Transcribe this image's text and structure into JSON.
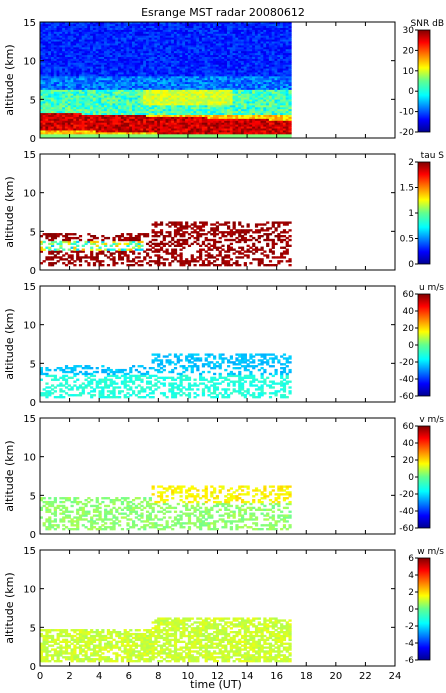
{
  "chart_data": {
    "title": "Esrange MST radar 20080612",
    "type": "heatmap",
    "xlabel": "time (UT)",
    "xlim": [
      0,
      24
    ],
    "x_ticks": [
      0,
      2,
      4,
      6,
      8,
      10,
      12,
      14,
      16,
      18,
      20,
      22,
      24
    ],
    "data_time_range": [
      0,
      17
    ],
    "panels": [
      {
        "id": "snr",
        "ylabel": "altitude (km)",
        "ylim": [
          0,
          15
        ],
        "y_ticks": [
          0,
          5,
          10,
          15
        ],
        "colorbar_label": "SNR dB",
        "colorbar_range": [
          -20,
          30
        ],
        "colorbar_ticks": [
          -20,
          -10,
          0,
          10,
          20,
          30
        ],
        "colormap": "jet",
        "coverage": "full altitude range 0-15 km, 0-17 UT",
        "features": [
          {
            "desc": "background noise",
            "altitude_km": [
              8,
              15
            ],
            "value": -12
          },
          {
            "desc": "elevated layer",
            "altitude_km": [
              3,
              6
            ],
            "value": 10
          },
          {
            "desc": "strong echo layer descending",
            "altitude_km": [
              1,
              3
            ],
            "value": 25
          }
        ]
      },
      {
        "id": "tau",
        "ylabel": "altitude (km)",
        "ylim": [
          0,
          15
        ],
        "y_ticks": [
          0,
          5,
          10,
          15
        ],
        "colorbar_label": "tau S",
        "colorbar_range": [
          0,
          2
        ],
        "colorbar_ticks": [
          0,
          0.5,
          1,
          1.5,
          2
        ],
        "colormap": "jet",
        "coverage": "sparse, 0.5-6.5 km",
        "features": [
          {
            "desc": "dominant",
            "altitude_km": [
              1,
              6
            ],
            "value": 2.0
          },
          {
            "desc": "low band",
            "altitude_km": [
              2.5,
              4
            ],
            "value": 0.9
          }
        ]
      },
      {
        "id": "u",
        "ylabel": "altitude (km)",
        "ylim": [
          0,
          15
        ],
        "y_ticks": [
          0,
          5,
          10,
          15
        ],
        "colorbar_label": "u m/s",
        "colorbar_range": [
          -60,
          60
        ],
        "colorbar_ticks": [
          -60,
          -40,
          -20,
          0,
          20,
          40,
          60
        ],
        "colormap": "jet",
        "coverage": "sparse, 0-6 km",
        "features": [
          {
            "desc": "upper",
            "altitude_km": [
              3.5,
              6
            ],
            "value": -20
          },
          {
            "desc": "lower",
            "altitude_km": [
              0,
              3.5
            ],
            "value": -12
          }
        ]
      },
      {
        "id": "v",
        "ylabel": "altitude (km)",
        "ylim": [
          0,
          15
        ],
        "y_ticks": [
          0,
          5,
          10,
          15
        ],
        "colorbar_label": "v m/s",
        "colorbar_range": [
          -60,
          60
        ],
        "colorbar_ticks": [
          -60,
          -40,
          -20,
          0,
          20,
          40,
          60
        ],
        "colormap": "jet",
        "coverage": "sparse, 0-6.5 km",
        "features": [
          {
            "desc": "upper after 8 UT",
            "altitude_km": [
              4,
              6.5
            ],
            "value": 15
          },
          {
            "desc": "lower",
            "altitude_km": [
              0,
              4
            ],
            "value": 2
          }
        ]
      },
      {
        "id": "w",
        "ylabel": "altitude (km)",
        "ylim": [
          0,
          15
        ],
        "y_ticks": [
          0,
          5,
          10,
          15
        ],
        "colorbar_label": "w m/s",
        "colorbar_range": [
          -6,
          6
        ],
        "colorbar_ticks": [
          -6,
          -4,
          -2,
          0,
          2,
          4,
          6
        ],
        "colormap": "jet",
        "coverage": "0-6 km",
        "features": [
          {
            "desc": "near zero throughout",
            "altitude_km": [
              0,
              6
            ],
            "value": 0.8
          }
        ]
      }
    ]
  }
}
